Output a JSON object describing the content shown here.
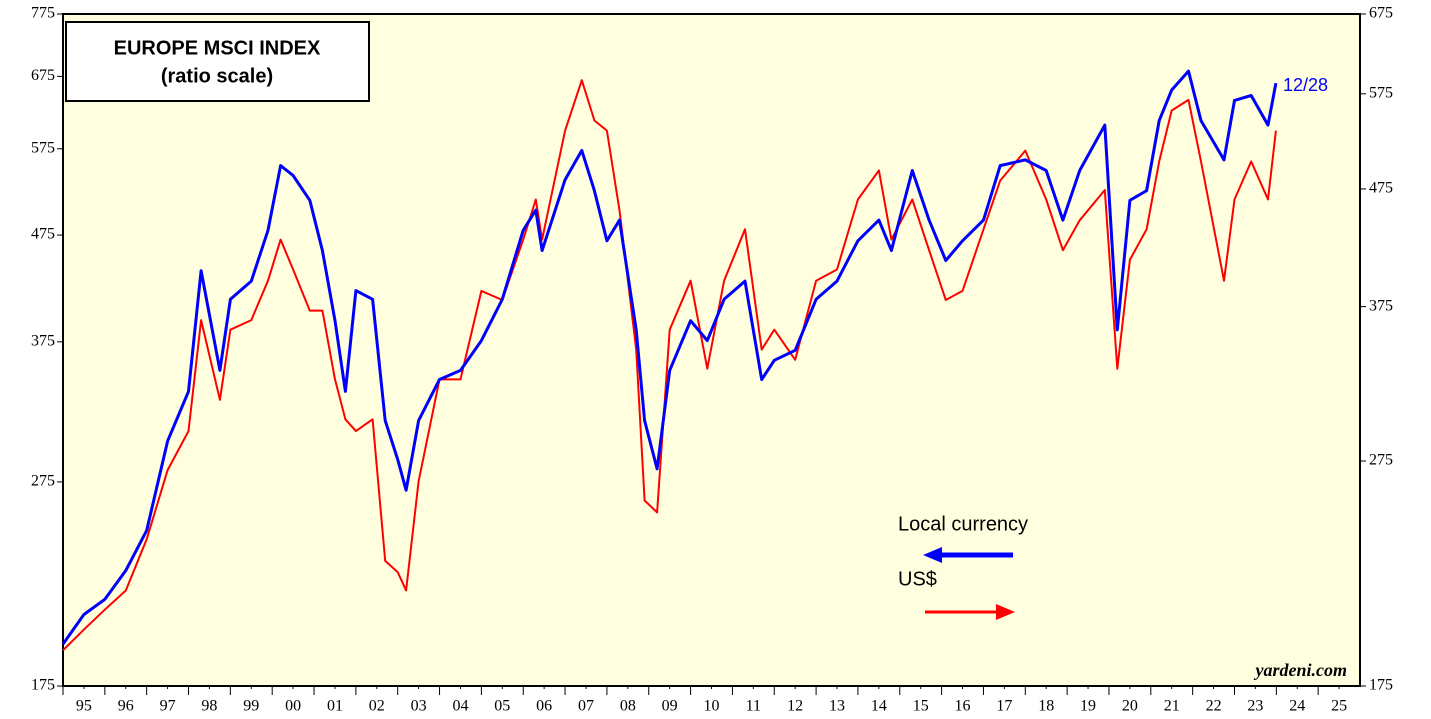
{
  "chart_data": {
    "type": "line",
    "title": "EUROPE MSCI INDEX",
    "subtitle": "(ratio scale)",
    "annotations": {
      "end_date": "12/28",
      "source": "yardeni.com"
    },
    "x": [
      1995.0,
      1995.5,
      1996.0,
      1996.5,
      1997.0,
      1997.5,
      1998.0,
      1998.3,
      1998.75,
      1999.0,
      1999.5,
      1999.9,
      2000.2,
      2000.5,
      2000.9,
      2001.2,
      2001.5,
      2001.75,
      2002.0,
      2002.4,
      2002.7,
      2003.0,
      2003.2,
      2003.5,
      2004.0,
      2004.5,
      2005.0,
      2005.5,
      2006.0,
      2006.3,
      2006.45,
      2007.0,
      2007.4,
      2007.7,
      2008.0,
      2008.3,
      2008.7,
      2008.9,
      2009.2,
      2009.5,
      2010.0,
      2010.4,
      2010.8,
      2011.3,
      2011.7,
      2012.0,
      2012.5,
      2013.0,
      2013.5,
      2014.0,
      2014.5,
      2014.8,
      2015.3,
      2015.7,
      2016.1,
      2016.5,
      2017.0,
      2017.4,
      2018.0,
      2018.5,
      2018.9,
      2019.3,
      2019.9,
      2020.2,
      2020.5,
      2020.9,
      2021.2,
      2021.5,
      2021.9,
      2022.2,
      2022.75,
      2023.0,
      2023.4,
      2023.8,
      2023.99
    ],
    "series": [
      {
        "name": "Local currency",
        "color": "#0000ff",
        "axis": "y",
        "values": [
          192,
          205,
          212,
          226,
          247,
          301,
          336,
          439,
          352,
          412,
          429,
          480,
          554,
          542,
          513,
          459,
          393,
          336,
          420,
          412,
          315,
          289,
          270,
          315,
          345,
          352,
          376,
          412,
          480,
          502,
          459,
          537,
          573,
          524,
          469,
          491,
          385,
          315,
          283,
          352,
          393,
          376,
          412,
          429,
          345,
          360,
          368,
          412,
          429,
          469,
          491,
          459,
          548,
          491,
          449,
          469,
          491,
          554,
          561,
          548,
          491,
          548,
          606,
          385,
          513,
          524,
          612,
          655,
          683,
          612,
          561,
          640,
          647,
          606,
          665
        ]
      },
      {
        "name": "US$",
        "color": "#ff0000",
        "axis": "y2",
        "values": [
          188,
          196,
          204,
          212,
          235,
          270,
          292,
          365,
          311,
          358,
          365,
          395,
          429,
          404,
          372,
          372,
          324,
          299,
          292,
          299,
          225,
          220,
          212,
          264,
          324,
          324,
          387,
          380,
          429,
          465,
          429,
          534,
          591,
          545,
          534,
          455,
          344,
          254,
          248,
          358,
          395,
          331,
          395,
          438,
          344,
          358,
          337,
          395,
          404,
          465,
          493,
          429,
          465,
          420,
          380,
          387,
          438,
          483,
          513,
          465,
          420,
          446,
          474,
          331,
          412,
          438,
          502,
          556,
          568,
          502,
          395,
          465,
          502,
          465,
          534
        ]
      }
    ],
    "xlim": [
      1995,
      2026
    ],
    "xticks": [
      {
        "value": 1995.5,
        "label": "95"
      },
      {
        "value": 1996.5,
        "label": "96"
      },
      {
        "value": 1997.5,
        "label": "97"
      },
      {
        "value": 1998.5,
        "label": "98"
      },
      {
        "value": 1999.5,
        "label": "99"
      },
      {
        "value": 2000.5,
        "label": "00"
      },
      {
        "value": 2001.5,
        "label": "01"
      },
      {
        "value": 2002.5,
        "label": "02"
      },
      {
        "value": 2003.5,
        "label": "03"
      },
      {
        "value": 2004.5,
        "label": "04"
      },
      {
        "value": 2005.5,
        "label": "05"
      },
      {
        "value": 2006.5,
        "label": "06"
      },
      {
        "value": 2007.5,
        "label": "07"
      },
      {
        "value": 2008.5,
        "label": "08"
      },
      {
        "value": 2009.5,
        "label": "09"
      },
      {
        "value": 2010.5,
        "label": "10"
      },
      {
        "value": 2011.5,
        "label": "11"
      },
      {
        "value": 2012.5,
        "label": "12"
      },
      {
        "value": 2013.5,
        "label": "13"
      },
      {
        "value": 2014.5,
        "label": "14"
      },
      {
        "value": 2015.5,
        "label": "15"
      },
      {
        "value": 2016.5,
        "label": "16"
      },
      {
        "value": 2017.5,
        "label": "17"
      },
      {
        "value": 2018.5,
        "label": "18"
      },
      {
        "value": 2019.5,
        "label": "19"
      },
      {
        "value": 2020.5,
        "label": "20"
      },
      {
        "value": 2021.5,
        "label": "21"
      },
      {
        "value": 2022.5,
        "label": "22"
      },
      {
        "value": 2023.5,
        "label": "23"
      },
      {
        "value": 2024.5,
        "label": "24"
      },
      {
        "value": 2025.5,
        "label": "25"
      }
    ],
    "ylim": [
      175,
      775
    ],
    "yticks": [
      175,
      275,
      375,
      475,
      575,
      675,
      775
    ],
    "y2lim": [
      175,
      675
    ],
    "y2ticks": [
      175,
      275,
      375,
      475,
      575,
      675
    ],
    "log_scale": true
  }
}
